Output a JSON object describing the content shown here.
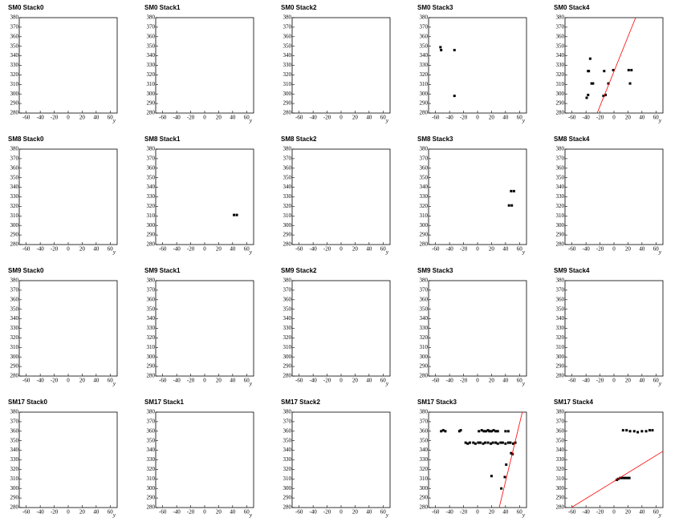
{
  "chart_data": [
    {
      "type": "scatter",
      "title": "SM0 Stack0",
      "x_label": "y",
      "xlim": [
        -70,
        70
      ],
      "ylim": [
        280,
        380
      ],
      "xticks": [
        -60,
        -40,
        -20,
        0,
        20,
        40,
        60
      ],
      "yticks": [
        280,
        290,
        300,
        310,
        320,
        330,
        340,
        350,
        360,
        370,
        380
      ],
      "series": []
    },
    {
      "type": "scatter",
      "title": "SM0 Stack1",
      "x_label": "y",
      "xlim": [
        -70,
        70
      ],
      "ylim": [
        280,
        380
      ],
      "xticks": [
        -60,
        -40,
        -20,
        0,
        20,
        40,
        60
      ],
      "yticks": [
        280,
        290,
        300,
        310,
        320,
        330,
        340,
        350,
        360,
        370,
        380
      ],
      "series": []
    },
    {
      "type": "scatter",
      "title": "SM0 Stack2",
      "x_label": "y",
      "xlim": [
        -70,
        70
      ],
      "ylim": [
        280,
        380
      ],
      "xticks": [
        -60,
        -40,
        -20,
        0,
        20,
        40,
        60
      ],
      "yticks": [
        280,
        290,
        300,
        310,
        320,
        330,
        340,
        350,
        360,
        370,
        380
      ],
      "series": []
    },
    {
      "type": "scatter",
      "title": "SM0 Stack3",
      "x_label": "y",
      "xlim": [
        -70,
        70
      ],
      "ylim": [
        280,
        380
      ],
      "xticks": [
        -60,
        -40,
        -20,
        0,
        20,
        40,
        60
      ],
      "yticks": [
        280,
        290,
        300,
        310,
        320,
        330,
        340,
        350,
        360,
        370,
        380
      ],
      "series": [
        {
          "type": "scatter",
          "color": "#000000",
          "x": [
            -53,
            -52,
            -33,
            -33
          ],
          "values": [
            349,
            346,
            346,
            298
          ]
        }
      ]
    },
    {
      "type": "scatter",
      "title": "SM0 Stack4",
      "x_label": "y",
      "xlim": [
        -70,
        70
      ],
      "ylim": [
        280,
        380
      ],
      "xticks": [
        -60,
        -40,
        -20,
        0,
        20,
        40,
        60
      ],
      "yticks": [
        280,
        290,
        300,
        310,
        320,
        330,
        340,
        350,
        360,
        370,
        380
      ],
      "series": [
        {
          "type": "scatter",
          "color": "#000000",
          "x": [
            -37,
            -39,
            -34,
            -37,
            -32,
            -15,
            -14,
            -8,
            -1,
            21,
            25,
            23,
            -36,
            -30,
            -12
          ],
          "values": [
            299,
            296,
            337,
            324,
            311,
            298,
            324,
            311,
            325,
            325,
            325,
            311,
            324,
            311,
            299
          ]
        },
        {
          "type": "line",
          "color": "#ff0000",
          "x": [
            -24,
            31
          ],
          "values": [
            280,
            380
          ]
        }
      ]
    },
    {
      "type": "scatter",
      "title": "SM8 Stack0",
      "x_label": "y",
      "xlim": [
        -70,
        70
      ],
      "ylim": [
        280,
        380
      ],
      "xticks": [
        -60,
        -40,
        -20,
        0,
        20,
        40,
        60
      ],
      "yticks": [
        280,
        290,
        300,
        310,
        320,
        330,
        340,
        350,
        360,
        370,
        380
      ],
      "series": []
    },
    {
      "type": "scatter",
      "title": "SM8 Stack1",
      "x_label": "y",
      "xlim": [
        -70,
        70
      ],
      "ylim": [
        280,
        380
      ],
      "xticks": [
        -60,
        -40,
        -20,
        0,
        20,
        40,
        60
      ],
      "yticks": [
        280,
        290,
        300,
        310,
        320,
        330,
        340,
        350,
        360,
        370,
        380
      ],
      "series": [
        {
          "type": "scatter",
          "color": "#000000",
          "x": [
            42,
            46
          ],
          "values": [
            311,
            311
          ]
        }
      ]
    },
    {
      "type": "scatter",
      "title": "SM8 Stack2",
      "x_label": "y",
      "xlim": [
        -70,
        70
      ],
      "ylim": [
        280,
        380
      ],
      "xticks": [
        -60,
        -40,
        -20,
        0,
        20,
        40,
        60
      ],
      "yticks": [
        280,
        290,
        300,
        310,
        320,
        330,
        340,
        350,
        360,
        370,
        380
      ],
      "series": []
    },
    {
      "type": "scatter",
      "title": "SM8 Stack3",
      "x_label": "y",
      "xlim": [
        -70,
        70
      ],
      "ylim": [
        280,
        380
      ],
      "xticks": [
        -60,
        -40,
        -20,
        0,
        20,
        40,
        60
      ],
      "yticks": [
        280,
        290,
        300,
        310,
        320,
        330,
        340,
        350,
        360,
        370,
        380
      ],
      "series": [
        {
          "type": "scatter",
          "color": "#000000",
          "x": [
            48,
            52,
            45,
            49
          ],
          "values": [
            336,
            336,
            321,
            321
          ]
        }
      ]
    },
    {
      "type": "scatter",
      "title": "SM8 Stack4",
      "x_label": "y",
      "xlim": [
        -70,
        70
      ],
      "ylim": [
        280,
        380
      ],
      "xticks": [
        -60,
        -40,
        -20,
        0,
        20,
        40,
        60
      ],
      "yticks": [
        280,
        290,
        300,
        310,
        320,
        330,
        340,
        350,
        360,
        370,
        380
      ],
      "series": []
    },
    {
      "type": "scatter",
      "title": "SM9 Stack0",
      "x_label": "y",
      "xlim": [
        -70,
        70
      ],
      "ylim": [
        280,
        380
      ],
      "xticks": [
        -60,
        -40,
        -20,
        0,
        20,
        40,
        60
      ],
      "yticks": [
        280,
        290,
        300,
        310,
        320,
        330,
        340,
        350,
        360,
        370,
        380
      ],
      "series": []
    },
    {
      "type": "scatter",
      "title": "SM9 Stack1",
      "x_label": "y",
      "xlim": [
        -70,
        70
      ],
      "ylim": [
        280,
        380
      ],
      "xticks": [
        -60,
        -40,
        -20,
        0,
        20,
        40,
        60
      ],
      "yticks": [
        280,
        290,
        300,
        310,
        320,
        330,
        340,
        350,
        360,
        370,
        380
      ],
      "series": []
    },
    {
      "type": "scatter",
      "title": "SM9 Stack2",
      "x_label": "y",
      "xlim": [
        -70,
        70
      ],
      "ylim": [
        280,
        380
      ],
      "xticks": [
        -60,
        -40,
        -20,
        0,
        20,
        40,
        60
      ],
      "yticks": [
        280,
        290,
        300,
        310,
        320,
        330,
        340,
        350,
        360,
        370,
        380
      ],
      "series": []
    },
    {
      "type": "scatter",
      "title": "SM9 Stack3",
      "x_label": "y",
      "xlim": [
        -70,
        70
      ],
      "ylim": [
        280,
        380
      ],
      "xticks": [
        -60,
        -40,
        -20,
        0,
        20,
        40,
        60
      ],
      "yticks": [
        280,
        290,
        300,
        310,
        320,
        330,
        340,
        350,
        360,
        370,
        380
      ],
      "series": []
    },
    {
      "type": "scatter",
      "title": "SM9 Stack4",
      "x_label": "y",
      "xlim": [
        -70,
        70
      ],
      "ylim": [
        280,
        380
      ],
      "xticks": [
        -60,
        -40,
        -20,
        0,
        20,
        40,
        60
      ],
      "yticks": [
        280,
        290,
        300,
        310,
        320,
        330,
        340,
        350,
        360,
        370,
        380
      ],
      "series": []
    },
    {
      "type": "scatter",
      "title": "SM17 Stack0",
      "x_label": "y",
      "xlim": [
        -70,
        70
      ],
      "ylim": [
        280,
        380
      ],
      "xticks": [
        -60,
        -40,
        -20,
        0,
        20,
        40,
        60
      ],
      "yticks": [
        280,
        290,
        300,
        310,
        320,
        330,
        340,
        350,
        360,
        370,
        380
      ],
      "series": []
    },
    {
      "type": "scatter",
      "title": "SM17 Stack1",
      "x_label": "y",
      "xlim": [
        -70,
        70
      ],
      "ylim": [
        280,
        380
      ],
      "xticks": [
        -60,
        -40,
        -20,
        0,
        20,
        40,
        60
      ],
      "yticks": [
        280,
        290,
        300,
        310,
        320,
        330,
        340,
        350,
        360,
        370,
        380
      ],
      "series": []
    },
    {
      "type": "scatter",
      "title": "SM17 Stack2",
      "x_label": "y",
      "xlim": [
        -70,
        70
      ],
      "ylim": [
        280,
        380
      ],
      "xticks": [
        -60,
        -40,
        -20,
        0,
        20,
        40,
        60
      ],
      "yticks": [
        280,
        290,
        300,
        310,
        320,
        330,
        340,
        350,
        360,
        370,
        380
      ],
      "series": []
    },
    {
      "type": "scatter",
      "title": "SM17 Stack3",
      "x_label": "y",
      "xlim": [
        -70,
        70
      ],
      "ylim": [
        280,
        380
      ],
      "xticks": [
        -60,
        -40,
        -20,
        0,
        20,
        40,
        60
      ],
      "yticks": [
        280,
        290,
        300,
        310,
        320,
        330,
        340,
        350,
        360,
        370,
        380
      ],
      "series": [
        {
          "type": "scatter",
          "color": "#000000",
          "x": [
            -52,
            -49,
            -46,
            -26,
            -24,
            2,
            6,
            9,
            12,
            15,
            17,
            20,
            23,
            26,
            29,
            40,
            44,
            -17,
            -14,
            -11,
            -6,
            -3,
            1,
            4,
            8,
            11,
            15,
            19,
            22,
            26,
            29,
            33,
            36,
            40,
            44,
            47,
            51,
            54,
            48,
            41,
            39,
            34,
            20,
            50
          ],
          "values": [
            360,
            361,
            360,
            360,
            361,
            360,
            361,
            360,
            360,
            361,
            360,
            360,
            361,
            360,
            360,
            360,
            360,
            348,
            347,
            348,
            348,
            347,
            348,
            348,
            347,
            348,
            348,
            347,
            348,
            348,
            347,
            348,
            348,
            347,
            348,
            348,
            347,
            348,
            337,
            325,
            312,
            300,
            313,
            336
          ]
        },
        {
          "type": "line",
          "color": "#ff0000",
          "x": [
            31,
            64
          ],
          "values": [
            280,
            380
          ]
        }
      ]
    },
    {
      "type": "scatter",
      "title": "SM17 Stack4",
      "x_label": "y",
      "xlim": [
        -70,
        70
      ],
      "ylim": [
        280,
        380
      ],
      "xticks": [
        -60,
        -40,
        -20,
        0,
        20,
        40,
        60
      ],
      "yticks": [
        280,
        290,
        300,
        310,
        320,
        330,
        340,
        350,
        360,
        370,
        380
      ],
      "series": [
        {
          "type": "scatter",
          "color": "#000000",
          "x": [
            13,
            18,
            23,
            29,
            34,
            40,
            46,
            51,
            55,
            4,
            6,
            9,
            12,
            15,
            17,
            20,
            22
          ],
          "values": [
            361,
            361,
            360,
            360,
            359,
            360,
            360,
            361,
            361,
            309,
            310,
            311,
            311,
            311,
            311,
            311,
            311
          ]
        },
        {
          "type": "line",
          "color": "#ff0000",
          "x": [
            -61,
            70
          ],
          "values": [
            280,
            339
          ]
        }
      ]
    }
  ]
}
